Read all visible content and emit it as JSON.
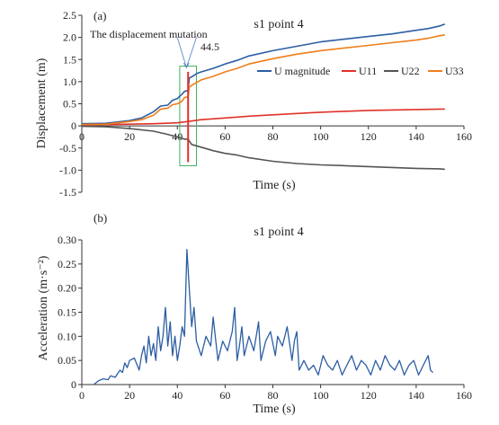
{
  "chart_data": [
    {
      "type": "line",
      "panel_label": "(a)",
      "title": "s1 point 4",
      "xlabel": "Time (s)",
      "ylabel": "Displacement (m)",
      "xlim": [
        0,
        160
      ],
      "ylim": [
        -1.5,
        2.5
      ],
      "x_ticks": [
        0,
        20,
        40,
        60,
        80,
        100,
        120,
        140,
        160
      ],
      "x_tick_labels": [
        "0",
        "20",
        "40",
        "60",
        "80",
        "100",
        "120",
        "140",
        "160"
      ],
      "y_ticks": [
        -1.5,
        -1.0,
        -0.5,
        0,
        0.5,
        1.0,
        1.5,
        2.0,
        2.5
      ],
      "y_tick_labels": [
        "-1.5",
        "-1.0",
        "-0.5",
        "0",
        "0.5",
        "1.0",
        "1.5",
        "2.0",
        "2.5"
      ],
      "grid": false,
      "legend_position": "center-right",
      "annotation": {
        "text": "The displacement mutation",
        "value_label": "44.5",
        "mutation_time": 44.5,
        "box_x_range": [
          41,
          48
        ],
        "box_y_range": [
          -0.9,
          1.35
        ]
      },
      "series": [
        {
          "name": "U magnitude",
          "color": "#2c5ea3",
          "x": [
            0,
            10,
            20,
            25,
            30,
            33,
            36,
            38,
            40,
            42,
            43,
            44.5,
            45,
            47,
            48,
            50,
            55,
            60,
            65,
            70,
            80,
            90,
            100,
            110,
            120,
            130,
            140,
            145,
            150,
            152
          ],
          "y": [
            0.05,
            0.06,
            0.12,
            0.18,
            0.32,
            0.45,
            0.47,
            0.58,
            0.62,
            0.72,
            0.78,
            0.8,
            1.08,
            1.14,
            1.18,
            1.22,
            1.3,
            1.4,
            1.48,
            1.58,
            1.7,
            1.8,
            1.9,
            1.96,
            2.02,
            2.08,
            2.16,
            2.2,
            2.26,
            2.3
          ]
        },
        {
          "name": "U11",
          "color": "#e0322a",
          "x": [
            0,
            10,
            20,
            30,
            40,
            44.5,
            50,
            60,
            70,
            80,
            90,
            100,
            110,
            120,
            130,
            140,
            150,
            152
          ],
          "y": [
            0.02,
            0.03,
            0.04,
            0.05,
            0.07,
            0.1,
            0.14,
            0.18,
            0.22,
            0.25,
            0.28,
            0.31,
            0.33,
            0.35,
            0.36,
            0.37,
            0.38,
            0.38
          ]
        },
        {
          "name": "U22",
          "color": "#555555",
          "x": [
            0,
            10,
            20,
            30,
            35,
            40,
            43,
            44.5,
            46,
            50,
            55,
            60,
            65,
            70,
            80,
            90,
            100,
            110,
            120,
            130,
            140,
            150,
            152
          ],
          "y": [
            -0.01,
            -0.02,
            -0.06,
            -0.12,
            -0.18,
            -0.25,
            -0.3,
            -0.3,
            -0.42,
            -0.48,
            -0.56,
            -0.62,
            -0.66,
            -0.72,
            -0.8,
            -0.85,
            -0.88,
            -0.9,
            -0.92,
            -0.94,
            -0.96,
            -0.97,
            -0.98
          ]
        },
        {
          "name": "U33",
          "color": "#f07d1a",
          "x": [
            0,
            10,
            20,
            25,
            30,
            33,
            36,
            38,
            40,
            42,
            43,
            44.5,
            45,
            47,
            48,
            50,
            55,
            60,
            65,
            70,
            80,
            90,
            100,
            110,
            120,
            130,
            140,
            145,
            150,
            152
          ],
          "y": [
            0.03,
            0.04,
            0.1,
            0.14,
            0.24,
            0.38,
            0.4,
            0.48,
            0.5,
            0.56,
            0.64,
            0.66,
            0.88,
            0.95,
            0.98,
            1.04,
            1.12,
            1.22,
            1.3,
            1.4,
            1.52,
            1.62,
            1.7,
            1.76,
            1.82,
            1.88,
            1.94,
            1.98,
            2.04,
            2.06
          ]
        }
      ]
    },
    {
      "type": "line",
      "panel_label": "(b)",
      "title": "s1 point 4",
      "xlabel": "Time (s)",
      "ylabel": "Acceleration (m·s⁻²)",
      "xlim": [
        0,
        160
      ],
      "ylim": [
        0,
        0.3
      ],
      "x_ticks": [
        0,
        20,
        40,
        60,
        80,
        100,
        120,
        140,
        160
      ],
      "x_tick_labels": [
        "0",
        "20",
        "40",
        "60",
        "80",
        "100",
        "120",
        "140",
        "160"
      ],
      "y_ticks": [
        0,
        0.05,
        0.1,
        0.15,
        0.2,
        0.25,
        0.3
      ],
      "y_tick_labels": [
        "0",
        "0.05",
        "0.10",
        "0.15",
        "0.20",
        "0.25",
        "0.30"
      ],
      "grid": false,
      "series": [
        {
          "color": "#2c5ea3",
          "x": [
            5,
            7,
            9,
            11,
            12,
            14,
            16,
            17,
            18,
            19,
            20,
            22,
            24,
            25,
            26,
            27,
            28,
            29,
            30,
            31,
            32,
            33,
            34,
            35,
            36,
            37,
            38,
            39,
            40,
            41,
            42,
            43,
            44,
            45,
            46,
            47,
            48,
            50,
            52,
            54,
            55,
            57,
            59,
            61,
            63,
            64,
            65,
            66,
            67,
            68,
            70,
            72,
            74,
            75,
            77,
            79,
            81,
            82,
            84,
            86,
            88,
            89,
            90,
            91,
            93,
            95,
            97,
            99,
            101,
            103,
            105,
            107,
            109,
            111,
            113,
            115,
            117,
            119,
            121,
            123,
            125,
            127,
            129,
            131,
            133,
            135,
            137,
            139,
            141,
            143,
            145,
            146,
            147
          ],
          "y": [
            0,
            0.008,
            0.012,
            0.01,
            0.018,
            0.015,
            0.03,
            0.025,
            0.045,
            0.035,
            0.05,
            0.055,
            0.03,
            0.06,
            0.08,
            0.045,
            0.1,
            0.06,
            0.085,
            0.05,
            0.12,
            0.07,
            0.1,
            0.16,
            0.08,
            0.13,
            0.06,
            0.1,
            0.05,
            0.08,
            0.12,
            0.1,
            0.28,
            0.2,
            0.12,
            0.16,
            0.09,
            0.06,
            0.1,
            0.08,
            0.14,
            0.05,
            0.09,
            0.07,
            0.11,
            0.16,
            0.05,
            0.08,
            0.12,
            0.06,
            0.1,
            0.07,
            0.13,
            0.05,
            0.09,
            0.11,
            0.06,
            0.1,
            0.08,
            0.12,
            0.05,
            0.09,
            0.11,
            0.03,
            0.05,
            0.03,
            0.04,
            0.02,
            0.06,
            0.04,
            0.03,
            0.05,
            0.02,
            0.04,
            0.06,
            0.03,
            0.05,
            0.04,
            0.02,
            0.05,
            0.03,
            0.06,
            0.04,
            0.03,
            0.05,
            0.02,
            0.04,
            0.05,
            0.02,
            0.04,
            0.06,
            0.03,
            0.025
          ]
        }
      ]
    }
  ]
}
